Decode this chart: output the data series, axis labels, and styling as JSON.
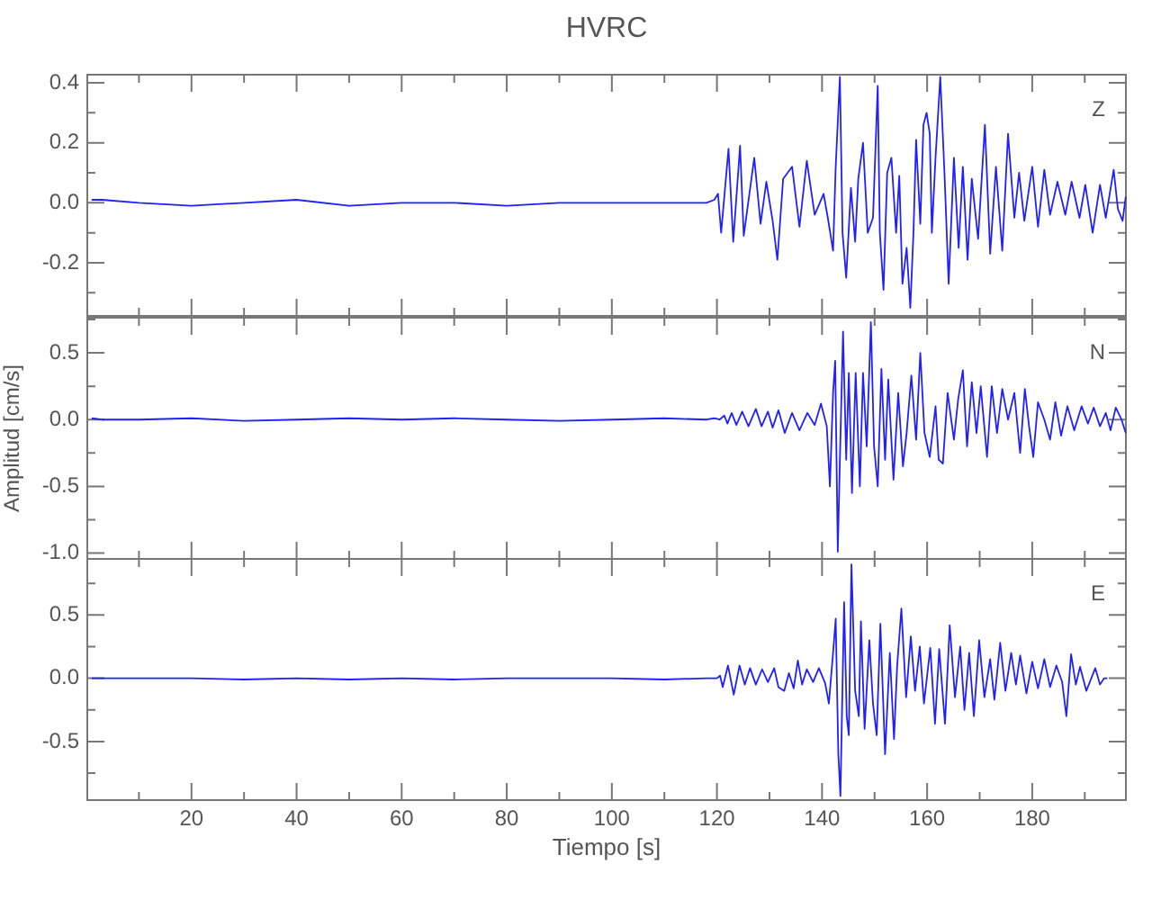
{
  "chart_data": [
    {
      "type": "line",
      "title": "HVRC",
      "xlim": [
        0,
        198
      ],
      "ylim": [
        -0.38,
        0.43
      ],
      "tick_labels": "y",
      "xticks": [
        {
          "value": 10,
          "label": null
        },
        20,
        {
          "value": 30,
          "label": null
        },
        40,
        {
          "value": 50,
          "label": null
        },
        60,
        {
          "value": 70,
          "label": null
        },
        80,
        {
          "value": 90,
          "label": null
        },
        100,
        {
          "value": 110,
          "label": null
        },
        120,
        {
          "value": 130,
          "label": null
        },
        140,
        {
          "value": 150,
          "label": null
        },
        160,
        {
          "value": 170,
          "label": null
        },
        180,
        {
          "value": 190,
          "label": null
        }
      ],
      "yticks": [
        {
          "value": -0.3,
          "label": null
        },
        -0.2,
        {
          "value": -0.1,
          "label": null
        },
        {
          "value": 0,
          "label": "0.0"
        },
        {
          "value": 0.1,
          "label": null
        },
        0.2,
        {
          "value": 0.3,
          "label": null
        },
        0.4
      ],
      "x": [
        1,
        3,
        10,
        20,
        30,
        40,
        50,
        60,
        70,
        80,
        90,
        100,
        110,
        118,
        119.5,
        120.2,
        120.8,
        122.2,
        123.1,
        124.4,
        125.1,
        127.1,
        128.3,
        129.4,
        130.6,
        131.5,
        132.6,
        134.3,
        135.7,
        137.1,
        138.6,
        140.3,
        141.1,
        142.1,
        142.6,
        143.4,
        143.9,
        144.6,
        145.5,
        146.3,
        146.9,
        147.8,
        148.7,
        149.7,
        150.6,
        151.0,
        151.7,
        152.4,
        153.2,
        154.1,
        154.7,
        155.3,
        156.1,
        156.8,
        157.4,
        157.9,
        158.7,
        159.3,
        159.9,
        160.5,
        160.9,
        161.6,
        162.5,
        163.3,
        164.1,
        165.1,
        166.0,
        166.8,
        167.7,
        168.5,
        169.7,
        171.0,
        172.0,
        173.1,
        174.3,
        175.4,
        176.6,
        177.5,
        178.5,
        180.0,
        181.1,
        182.3,
        183.4,
        184.8,
        186.3,
        187.5,
        189.0,
        190.1,
        191.5,
        192.9,
        194.0,
        195.5,
        196.3,
        197.2,
        197.8
      ],
      "series": [
        {
          "name": "Z",
          "color": "#2020ff",
          "values": [
            0.01,
            0.01,
            0,
            -0.01,
            0,
            0.01,
            -0.01,
            0,
            0,
            -0.01,
            0,
            0,
            0,
            0,
            0.01,
            0.03,
            -0.1,
            0.18,
            -0.13,
            0.19,
            -0.11,
            0.15,
            -0.07,
            0.07,
            -0.06,
            -0.19,
            0.08,
            0.12,
            -0.08,
            0.14,
            -0.04,
            0.03,
            -0.05,
            -0.16,
            0.12,
            0.42,
            -0.1,
            -0.25,
            0.05,
            -0.13,
            0.08,
            0.2,
            -0.1,
            -0.05,
            0.39,
            -0.1,
            -0.29,
            0.1,
            0.15,
            -0.1,
            0.09,
            -0.27,
            -0.15,
            -0.35,
            -0.1,
            0.21,
            -0.07,
            0.26,
            0.3,
            0.23,
            -0.1,
            0.15,
            0.42,
            0.1,
            -0.27,
            0.15,
            -0.15,
            0.12,
            -0.19,
            0.08,
            -0.12,
            0.26,
            -0.17,
            0.12,
            -0.16,
            0.23,
            -0.05,
            0.1,
            -0.06,
            0.12,
            -0.08,
            0.11,
            -0.04,
            0.07,
            -0.04,
            0.07,
            -0.05,
            0.06,
            -0.1,
            0.06,
            -0.05,
            0.11,
            -0.02,
            -0.06,
            0.02
          ]
        }
      ]
    },
    {
      "type": "line",
      "ylabel": "Amplitud [cm/s]",
      "xlim": [
        0,
        198
      ],
      "ylim": [
        -1.05,
        0.77
      ],
      "tick_labels": "y",
      "xticks": [
        {
          "value": 10,
          "label": null
        },
        20,
        {
          "value": 30,
          "label": null
        },
        40,
        {
          "value": 50,
          "label": null
        },
        60,
        {
          "value": 70,
          "label": null
        },
        80,
        {
          "value": 90,
          "label": null
        },
        100,
        {
          "value": 110,
          "label": null
        },
        120,
        {
          "value": 130,
          "label": null
        },
        140,
        {
          "value": 150,
          "label": null
        },
        160,
        {
          "value": 170,
          "label": null
        },
        180,
        {
          "value": 190,
          "label": null
        }
      ],
      "yticks": [
        {
          "value": -1,
          "label": "-1.0"
        },
        {
          "value": -0.75,
          "label": null
        },
        -0.5,
        {
          "value": -0.25,
          "label": null
        },
        {
          "value": 0,
          "label": "0.0"
        },
        {
          "value": 0.25,
          "label": null
        },
        0.5,
        {
          "value": 0.75,
          "label": null
        }
      ],
      "x": [
        1,
        3,
        10,
        20,
        30,
        40,
        50,
        60,
        70,
        80,
        90,
        100,
        110,
        118,
        119.5,
        120.5,
        121.4,
        122.0,
        122.8,
        123.7,
        124.8,
        126.0,
        127.4,
        128.5,
        129.7,
        130.6,
        131.7,
        132.9,
        134.3,
        135.7,
        137.2,
        138.6,
        139.8,
        140.9,
        141.5,
        142.1,
        142.5,
        143.0,
        143.4,
        144.0,
        144.6,
        145.1,
        145.7,
        146.4,
        147.2,
        147.8,
        148.5,
        149.3,
        149.9,
        150.6,
        151.3,
        152.0,
        152.6,
        153.6,
        154.5,
        155.4,
        156.1,
        157.0,
        157.9,
        158.7,
        159.5,
        160.5,
        161.6,
        162.2,
        163.0,
        163.9,
        165.1,
        165.9,
        166.8,
        167.6,
        168.5,
        169.4,
        170.2,
        171.4,
        172.3,
        173.3,
        174.3,
        175.4,
        176.6,
        177.7,
        178.6,
        179.4,
        180.2,
        181.1,
        182.3,
        183.4,
        184.4,
        185.5,
        186.7,
        188.0,
        189.4,
        190.6,
        191.7,
        192.9,
        194.0,
        194.9,
        195.9,
        197.0,
        197.8
      ],
      "series": [
        {
          "name": "N",
          "color": "#2020ff",
          "values": [
            0.01,
            0,
            0,
            0.01,
            -0.01,
            0,
            0.01,
            0,
            0.01,
            0,
            -0.01,
            0,
            0.01,
            0,
            0.01,
            0,
            0.03,
            -0.03,
            0.05,
            -0.04,
            0.06,
            -0.05,
            0.08,
            -0.05,
            0.06,
            -0.06,
            0.07,
            -0.1,
            0.05,
            -0.08,
            0.05,
            -0.04,
            0.12,
            -0.05,
            -0.5,
            0.2,
            0.44,
            -0.99,
            -0.3,
            0.66,
            -0.3,
            0.35,
            -0.55,
            0.35,
            -0.5,
            0.35,
            -0.2,
            0.73,
            -0.2,
            -0.5,
            0.38,
            -0.3,
            0.3,
            -0.45,
            0.2,
            -0.35,
            -0.1,
            0.33,
            -0.15,
            0.5,
            -0.1,
            -0.28,
            0.1,
            -0.3,
            -0.33,
            0.2,
            -0.15,
            0.15,
            0.37,
            -0.2,
            0.28,
            -0.1,
            0.25,
            -0.28,
            0.25,
            -0.1,
            0.23,
            0,
            0.2,
            -0.25,
            0.23,
            -0.05,
            -0.28,
            0.13,
            0,
            -0.15,
            0.13,
            -0.12,
            0.1,
            -0.08,
            0.1,
            -0.03,
            0.09,
            -0.05,
            0.05,
            -0.08,
            0.09,
            0,
            -0.1
          ]
        }
      ]
    },
    {
      "type": "line",
      "xlabel": "Tiempo [s]",
      "xlim": [
        0,
        198
      ],
      "ylim": [
        -0.97,
        0.95
      ],
      "xticks": [
        {
          "value": 10,
          "label": null
        },
        20,
        {
          "value": 30,
          "label": null
        },
        40,
        {
          "value": 50,
          "label": null
        },
        60,
        {
          "value": 70,
          "label": null
        },
        80,
        {
          "value": 90,
          "label": null
        },
        100,
        {
          "value": 110,
          "label": null
        },
        120,
        {
          "value": 130,
          "label": null
        },
        140,
        {
          "value": 150,
          "label": null
        },
        160,
        {
          "value": 170,
          "label": null
        },
        180,
        {
          "value": 190,
          "label": null
        }
      ],
      "yticks": [
        {
          "value": -0.75,
          "label": null
        },
        -0.5,
        {
          "value": -0.25,
          "label": null
        },
        {
          "value": 0,
          "label": "0.0"
        },
        {
          "value": 0.25,
          "label": null
        },
        0.5,
        {
          "value": 0.75,
          "label": null
        }
      ],
      "x": [
        1,
        3,
        10,
        20,
        30,
        40,
        50,
        60,
        70,
        80,
        90,
        100,
        110,
        118,
        120,
        120.6,
        121.1,
        122.1,
        123.2,
        124.3,
        125.3,
        126.3,
        127.4,
        128.6,
        129.7,
        130.9,
        131.7,
        132.8,
        133.7,
        134.6,
        135.4,
        136.2,
        137.1,
        138.3,
        139.4,
        140.6,
        141.3,
        142.1,
        142.6,
        143.1,
        143.5,
        144.2,
        144.7,
        145.1,
        145.6,
        146.3,
        147.0,
        147.4,
        148.1,
        149.0,
        149.7,
        150.4,
        151.1,
        152.0,
        152.9,
        153.7,
        154.3,
        155.1,
        156.0,
        156.9,
        157.7,
        158.6,
        159.4,
        160.6,
        161.5,
        162.3,
        163.4,
        164.3,
        165.3,
        166.3,
        167.1,
        168.0,
        168.9,
        169.9,
        170.9,
        172.0,
        172.8,
        173.9,
        174.9,
        176.0,
        176.9,
        177.7,
        178.9,
        180.0,
        181.1,
        182.3,
        183.4,
        184.6,
        185.7,
        186.5,
        187.4,
        188.3,
        189.1,
        190.3,
        192.0,
        192.9,
        193.7,
        194.3
      ],
      "series": [
        {
          "name": "E",
          "color": "#2020ff",
          "values": [
            0,
            0,
            0,
            0,
            -0.01,
            0,
            -0.01,
            0,
            -0.01,
            0,
            0,
            0,
            -0.01,
            0,
            0,
            0.02,
            -0.07,
            0.1,
            -0.13,
            0.1,
            -0.05,
            0.08,
            -0.05,
            0.07,
            -0.03,
            0.08,
            -0.07,
            -0.1,
            0.04,
            -0.08,
            0.14,
            -0.05,
            0.07,
            -0.03,
            0.08,
            -0.04,
            -0.2,
            0.2,
            0.47,
            -0.6,
            -0.93,
            0.6,
            -0.3,
            -0.45,
            0.9,
            -0.1,
            -0.3,
            0.45,
            -0.4,
            0.3,
            -0.2,
            -0.45,
            0.43,
            -0.6,
            0.2,
            -0.48,
            0.1,
            0.55,
            -0.15,
            0.33,
            -0.1,
            0.25,
            -0.2,
            0.24,
            -0.36,
            0.23,
            -0.36,
            0.42,
            -0.15,
            0.25,
            -0.25,
            0.2,
            -0.3,
            0.3,
            -0.15,
            0.15,
            -0.17,
            0.28,
            -0.1,
            0.2,
            -0.05,
            0.18,
            -0.12,
            0.13,
            -0.08,
            0.15,
            -0.07,
            0.1,
            -0.03,
            -0.3,
            0.19,
            -0.05,
            0.09,
            -0.1,
            0.08,
            -0.05,
            0,
            0
          ]
        }
      ]
    }
  ]
}
